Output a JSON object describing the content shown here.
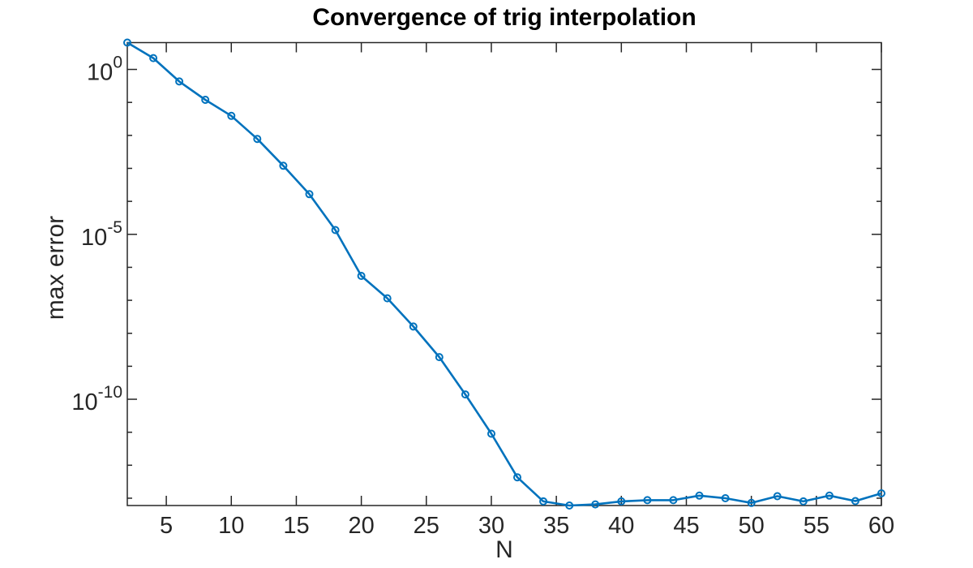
{
  "chart_data": {
    "type": "line",
    "title": "Convergence of trig interpolation",
    "xlabel": "N",
    "ylabel": "max error",
    "x_scale": "linear",
    "y_scale": "log",
    "xlim": [
      2,
      60
    ],
    "ylim": [
      6e-14,
      6.5
    ],
    "grid": false,
    "legend": null,
    "line_color": "#0072BD",
    "axis_color": "#262626",
    "background_color": "#ffffff",
    "marker_style": "open-circle",
    "x_ticks": [
      5,
      10,
      15,
      20,
      25,
      30,
      35,
      40,
      45,
      50,
      55,
      60
    ],
    "y_major_ticks": [
      {
        "value": 1.0,
        "base": "10",
        "exponent": "0"
      },
      {
        "value": 1e-05,
        "base": "10",
        "exponent": "-5"
      },
      {
        "value": 1e-10,
        "base": "10",
        "exponent": "-10"
      }
    ],
    "y_minor_tick_exponents": [
      -1,
      -2,
      -3,
      -4,
      -6,
      -7,
      -8,
      -9,
      -11,
      -12,
      -13
    ],
    "series": [
      {
        "name": "max error",
        "x": [
          2,
          4,
          6,
          8,
          10,
          12,
          14,
          16,
          18,
          20,
          22,
          24,
          26,
          28,
          30,
          32,
          34,
          36,
          38,
          40,
          42,
          44,
          46,
          48,
          50,
          52,
          54,
          56,
          58,
          60
        ],
        "y": [
          6.5,
          2.2,
          0.43,
          0.12,
          0.039,
          0.0078,
          0.0012,
          0.000165,
          1.35e-05,
          5.5e-07,
          1.15e-07,
          1.6e-08,
          1.9e-09,
          1.4e-10,
          9e-12,
          4.3e-13,
          8e-14,
          6e-14,
          6.5e-14,
          8e-14,
          8.7e-14,
          8.7e-14,
          1.2e-13,
          1e-13,
          7.2e-14,
          1.15e-13,
          8e-14,
          1.2e-13,
          8.2e-14,
          1.4e-13
        ]
      }
    ]
  }
}
